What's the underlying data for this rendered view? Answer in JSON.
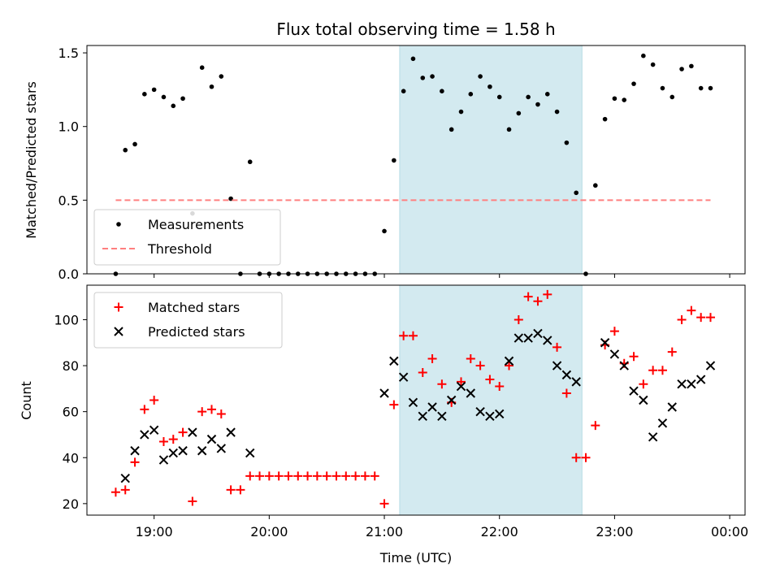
{
  "chart_data": [
    {
      "type": "scatter",
      "title": "Flux total observing time = 1.58 h",
      "xlabel": "",
      "ylabel": "Matched/Predicted stars",
      "xlim": [
        "18:25",
        "00:08"
      ],
      "ylim": [
        0,
        1.55
      ],
      "x_ticks": [
        "19:00",
        "20:00",
        "21:00",
        "22:00",
        "23:00",
        "00:00"
      ],
      "y_ticks": [
        "0.0",
        "0.5",
        "1.0",
        "1.5"
      ],
      "shaded_region": {
        "start": "21:08",
        "end": "22:43",
        "color": "#d3eaf0"
      },
      "legend_position": "lower-left",
      "series": [
        {
          "name": "Measurements",
          "marker": "dot",
          "color": "#000000",
          "x": [
            "18:40",
            "18:45",
            "18:50",
            "18:55",
            "19:00",
            "19:05",
            "19:10",
            "19:15",
            "19:20",
            "19:25",
            "19:30",
            "19:35",
            "19:40",
            "19:45",
            "19:50",
            "19:55",
            "20:00",
            "20:05",
            "20:10",
            "20:15",
            "20:20",
            "20:25",
            "20:30",
            "20:35",
            "20:40",
            "20:45",
            "20:50",
            "20:55",
            "21:00",
            "21:05",
            "21:10",
            "21:15",
            "21:20",
            "21:25",
            "21:30",
            "21:35",
            "21:40",
            "21:45",
            "21:50",
            "21:55",
            "22:00",
            "22:05",
            "22:10",
            "22:15",
            "22:20",
            "22:25",
            "22:30",
            "22:35",
            "22:40",
            "22:45",
            "22:50",
            "22:55",
            "23:00",
            "23:05",
            "23:10",
            "23:15",
            "23:20",
            "23:25",
            "23:30",
            "23:35",
            "23:40",
            "23:45",
            "23:50"
          ],
          "y": [
            0.0,
            0.84,
            0.88,
            1.22,
            1.25,
            1.2,
            1.14,
            1.19,
            0.41,
            1.4,
            1.27,
            1.34,
            0.51,
            0.0,
            0.76,
            0.0,
            0.0,
            0.0,
            0.0,
            0.0,
            0.0,
            0.0,
            0.0,
            0.0,
            0.0,
            0.0,
            0.0,
            0.0,
            0.29,
            0.77,
            1.24,
            1.46,
            1.33,
            1.34,
            1.24,
            0.98,
            1.1,
            1.22,
            1.34,
            1.27,
            1.2,
            0.98,
            1.09,
            1.2,
            1.15,
            1.22,
            1.1,
            0.89,
            0.55,
            0.0,
            0.6,
            1.05,
            1.19,
            1.18,
            1.29,
            1.48,
            1.42,
            1.26,
            1.2,
            1.39,
            1.41,
            1.26,
            1.26
          ]
        },
        {
          "name": "Threshold",
          "marker": "dashed-line",
          "color": "#ff7f7f",
          "x": [
            "18:40",
            "23:50"
          ],
          "y": [
            0.5,
            0.5
          ]
        }
      ]
    },
    {
      "type": "scatter",
      "title": "",
      "xlabel": "Time (UTC)",
      "ylabel": "Count",
      "xlim": [
        "18:25",
        "00:08"
      ],
      "ylim": [
        15,
        115
      ],
      "x_ticks": [
        "19:00",
        "20:00",
        "21:00",
        "22:00",
        "23:00",
        "00:00"
      ],
      "y_ticks": [
        "20",
        "40",
        "60",
        "80",
        "100"
      ],
      "shaded_region": {
        "start": "21:08",
        "end": "22:43",
        "color": "#d3eaf0"
      },
      "legend_position": "upper-left",
      "series": [
        {
          "name": "Matched stars",
          "marker": "plus",
          "color": "#ff0000",
          "x": [
            "18:40",
            "18:45",
            "18:50",
            "18:55",
            "19:00",
            "19:05",
            "19:10",
            "19:15",
            "19:20",
            "19:25",
            "19:30",
            "19:35",
            "19:40",
            "19:45",
            "19:50",
            "19:55",
            "20:00",
            "20:05",
            "20:10",
            "20:15",
            "20:20",
            "20:25",
            "20:30",
            "20:35",
            "20:40",
            "20:45",
            "20:50",
            "20:55",
            "21:00",
            "21:05",
            "21:10",
            "21:15",
            "21:20",
            "21:25",
            "21:30",
            "21:35",
            "21:40",
            "21:45",
            "21:50",
            "21:55",
            "22:00",
            "22:05",
            "22:10",
            "22:15",
            "22:20",
            "22:25",
            "22:30",
            "22:35",
            "22:40",
            "22:45",
            "22:50",
            "22:55",
            "23:00",
            "23:05",
            "23:10",
            "23:15",
            "23:20",
            "23:25",
            "23:30",
            "23:35",
            "23:40",
            "23:45",
            "23:50"
          ],
          "y": [
            25,
            26,
            38,
            61,
            65,
            47,
            48,
            51,
            21,
            60,
            61,
            59,
            26,
            26,
            32,
            32,
            32,
            32,
            32,
            32,
            32,
            32,
            32,
            32,
            32,
            32,
            32,
            32,
            20,
            63,
            93,
            93,
            77,
            83,
            72,
            64,
            73,
            83,
            80,
            74,
            71,
            80,
            100,
            110,
            108,
            111,
            88,
            68,
            40,
            40,
            54,
            89,
            95,
            81,
            84,
            72,
            78,
            78,
            86,
            100,
            104,
            101,
            101
          ]
        },
        {
          "name": "Predicted stars",
          "marker": "cross",
          "color": "#000000",
          "x": [
            "18:45",
            "18:50",
            "18:55",
            "19:00",
            "19:05",
            "19:10",
            "19:15",
            "19:20",
            "19:25",
            "19:30",
            "19:35",
            "19:40",
            "19:50",
            "21:00",
            "21:05",
            "21:10",
            "21:15",
            "21:20",
            "21:25",
            "21:30",
            "21:35",
            "21:40",
            "21:45",
            "21:50",
            "21:55",
            "22:00",
            "22:05",
            "22:10",
            "22:15",
            "22:20",
            "22:25",
            "22:30",
            "22:35",
            "22:40",
            "22:55",
            "23:00",
            "23:05",
            "23:10",
            "23:15",
            "23:20",
            "23:25",
            "23:30",
            "23:35",
            "23:40",
            "23:45",
            "23:50"
          ],
          "y": [
            31,
            43,
            50,
            52,
            39,
            42,
            43,
            51,
            43,
            48,
            44,
            51,
            42,
            68,
            82,
            75,
            64,
            58,
            62,
            58,
            65,
            71,
            68,
            60,
            58,
            59,
            82,
            92,
            92,
            94,
            91,
            80,
            76,
            73,
            90,
            85,
            80,
            69,
            65,
            49,
            55,
            62,
            72,
            72,
            74,
            80
          ]
        }
      ]
    }
  ]
}
